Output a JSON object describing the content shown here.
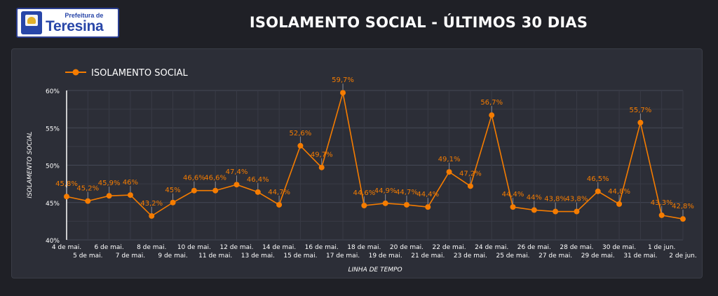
{
  "header": {
    "logo_top": "Prefeitura de",
    "logo_main": "Teresina",
    "title": "ISOLAMENTO SOCIAL - ÚLTIMOS 30 DIAS"
  },
  "colors": {
    "series": "#f57c00",
    "background": "#1f2026",
    "panel": "#2c2e37",
    "grid": "#454856"
  },
  "chart_data": {
    "type": "line",
    "title": "ISOLAMENTO SOCIAL - ÚLTIMOS 30 DIAS",
    "xlabel": "LINHA DE TEMPO",
    "ylabel": "ISOLAMENTO SOCIAL",
    "ylim": [
      40,
      60
    ],
    "yticks": [
      "40%",
      "45%",
      "50%",
      "55%",
      "60%"
    ],
    "legend_position": "top-left",
    "grid": true,
    "categories": [
      "4 de mai.",
      "5 de mai.",
      "6 de mai.",
      "7 de mai.",
      "8 de mai.",
      "9 de mai.",
      "10 de mai.",
      "11 de mai.",
      "12 de mai.",
      "13 de mai.",
      "14 de mai.",
      "15 de mai.",
      "16 de mai.",
      "17 de mai.",
      "18 de mai.",
      "19 de mai.",
      "20 de mai.",
      "21 de mai.",
      "22 de mai.",
      "23 de mai.",
      "24 de mai.",
      "25 de mai.",
      "26 de mai.",
      "27 de mai.",
      "28 de mai.",
      "29 de mai.",
      "30 de mai.",
      "31 de mai.",
      "1 de jun.",
      "2 de jun."
    ],
    "series": [
      {
        "name": "ISOLAMENTO SOCIAL",
        "values": [
          45.8,
          45.2,
          45.9,
          46,
          43.2,
          45,
          46.6,
          46.6,
          47.4,
          46.4,
          44.7,
          52.6,
          49.7,
          59.7,
          44.6,
          44.9,
          44.7,
          44.4,
          49.1,
          47.2,
          56.7,
          44.4,
          44,
          43.8,
          43.8,
          46.5,
          44.8,
          55.7,
          43.3,
          42.8
        ],
        "labels": [
          "45,8%",
          "45,2%",
          "45,9%",
          "46%",
          "43,2%",
          "45%",
          "46,6%",
          "46,6%",
          "47,4%",
          "46,4%",
          "44,7%",
          "52,6%",
          "49,7%",
          "59,7%",
          "44,6%",
          "44,9%",
          "44,7%",
          "44,4%",
          "49,1%",
          "47,2%",
          "56,7%",
          "44,4%",
          "44%",
          "43,8%",
          "43,8%",
          "46,5%",
          "44,8%",
          "55,7%",
          "43,3%",
          "42,8%"
        ]
      }
    ]
  }
}
